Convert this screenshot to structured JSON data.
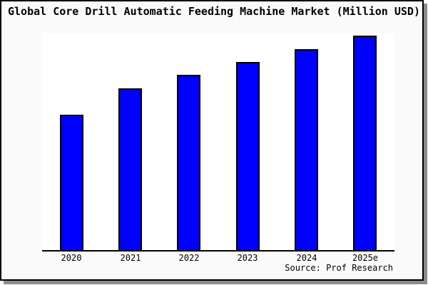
{
  "title": "Global Core Drill Automatic Feeding Machine Market (Million USD)",
  "source": "Source: Prof Research",
  "colors": {
    "bar_fill": "#0000FF",
    "bar_border": "#000000",
    "card_background": "#FAFAFA",
    "plot_background": "#FFFFFF",
    "axis_line": "#000000",
    "card_border": "#000000",
    "drop_shadow": "#8C8C8C",
    "text": "#000000"
  },
  "chart_data": {
    "type": "bar",
    "title": "Global Core Drill Automatic Feeding Machine Market (Million USD)",
    "categories": [
      "2020",
      "2021",
      "2022",
      "2023",
      "2024",
      "2025e"
    ],
    "values": [
      62.3,
      74.4,
      80.7,
      86.6,
      92.5,
      98.7
    ],
    "value_note": "y-axis has no tick labels; values are relative bar heights in % of plot height",
    "xlabel": "",
    "ylabel": "",
    "ylim": [
      0,
      100
    ],
    "grid": false,
    "legend": false,
    "bar_color": "#0000FF",
    "annotations": [
      "Source: Prof Research"
    ]
  }
}
